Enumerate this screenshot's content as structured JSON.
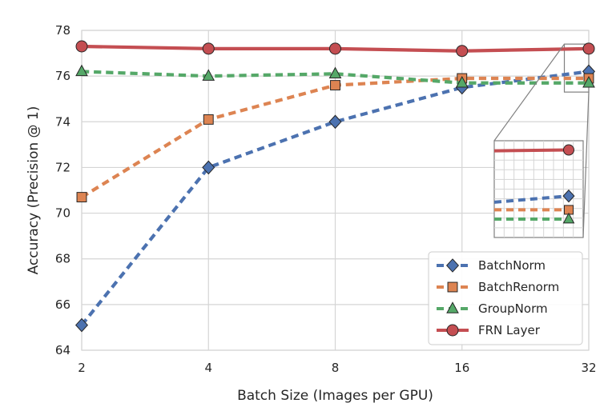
{
  "chart_data": {
    "type": "line",
    "xlabel": "Batch Size (Images per GPU)",
    "ylabel": "Accuracy (Precision @ 1)",
    "x": [
      2,
      4,
      8,
      16,
      32
    ],
    "x_scale": "log2",
    "x_tick_labels": [
      "2",
      "4",
      "8",
      "16",
      "32"
    ],
    "ylim": [
      64,
      78
    ],
    "y_ticks": [
      64,
      66,
      68,
      70,
      72,
      74,
      76,
      78
    ],
    "y_tick_labels": [
      "64",
      "66",
      "68",
      "70",
      "72",
      "74",
      "76",
      "78"
    ],
    "grid": true,
    "legend_position": "bottom-right",
    "series": [
      {
        "name": "BatchNorm",
        "values": [
          65.1,
          72.0,
          74.0,
          75.5,
          76.2
        ],
        "color": "#4c72b0",
        "marker": "diamond",
        "line_style": "dashed"
      },
      {
        "name": "BatchRenorm",
        "values": [
          70.7,
          74.1,
          75.6,
          75.9,
          75.9
        ],
        "color": "#dd8452",
        "marker": "square",
        "line_style": "dashed"
      },
      {
        "name": "GroupNorm",
        "values": [
          76.2,
          76.0,
          76.1,
          75.7,
          75.7
        ],
        "color": "#55a868",
        "marker": "triangle",
        "line_style": "dashed"
      },
      {
        "name": "FRN Layer",
        "values": [
          77.3,
          77.2,
          77.2,
          77.1,
          77.2
        ],
        "color": "#c44e52",
        "marker": "circle",
        "line_style": "solid"
      }
    ],
    "inset": {
      "x_range": [
        28,
        32
      ],
      "y_range": [
        75.3,
        77.4
      ],
      "location": "right"
    }
  }
}
